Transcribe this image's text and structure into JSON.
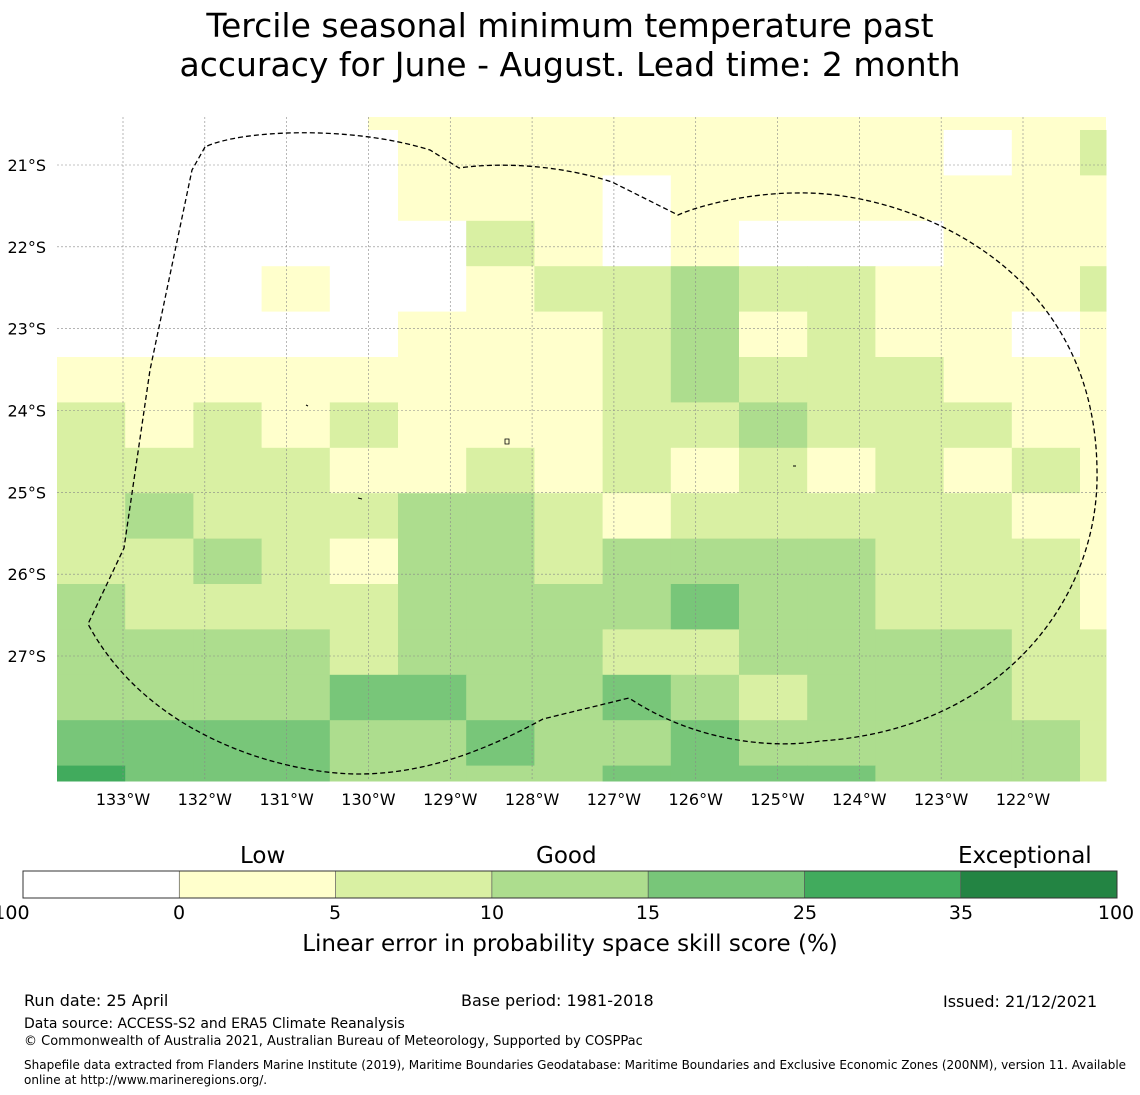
{
  "title": "Tercile seasonal minimum temperature past",
  "title_line2": "accuracy for June - August. Lead time: 2 month",
  "map": {
    "lon_labels": [
      "133°W",
      "132°W",
      "131°W",
      "130°W",
      "129°W",
      "128°W",
      "127°W",
      "126°W",
      "125°W",
      "124°W",
      "123°W",
      "122°W"
    ],
    "lon_values": [
      -133,
      -132,
      -131,
      -130,
      -129,
      -128,
      -127,
      -126,
      -125,
      -124,
      -123,
      -122
    ],
    "lat_labels": [
      "21°S",
      "22°S",
      "23°S",
      "24°S",
      "25°S",
      "26°S",
      "27°S"
    ],
    "lat_values": [
      -21,
      -22,
      -23,
      -24,
      -25,
      -26,
      -27
    ],
    "grid_note_columns": [
      "-133.8",
      "-133.0",
      "-132.2",
      "-131.3",
      "-130.5",
      "-129.7",
      "-128.8",
      "-128.0",
      "-127.2",
      "-126.3",
      "-125.5",
      "-124.7",
      "-123.8",
      "-123.0",
      "-122.2",
      "-121.3"
    ],
    "cell_class_grid": [
      [
        "w",
        "w",
        "w",
        "w",
        "w",
        "y",
        "y",
        "y",
        "y",
        "y",
        "y",
        "y",
        "y",
        "w",
        "y",
        "g"
      ],
      [
        "w",
        "w",
        "w",
        "w",
        "w",
        "y",
        "y",
        "y",
        "w",
        "y",
        "y",
        "y",
        "y",
        "y",
        "y",
        "y"
      ],
      [
        "w",
        "w",
        "w",
        "w",
        "w",
        "w",
        "g",
        "y",
        "w",
        "y",
        "w",
        "w",
        "w",
        "y",
        "y",
        "y"
      ],
      [
        "w",
        "w",
        "w",
        "y",
        "w",
        "w",
        "y",
        "g",
        "g",
        "m",
        "g",
        "g",
        "y",
        "y",
        "y",
        "g"
      ],
      [
        "w",
        "w",
        "w",
        "w",
        "w",
        "y",
        "y",
        "y",
        "g",
        "m",
        "y",
        "g",
        "y",
        "y",
        "w",
        "y"
      ],
      [
        "y",
        "y",
        "y",
        "y",
        "y",
        "y",
        "y",
        "y",
        "g",
        "m",
        "g",
        "g",
        "g",
        "y",
        "y",
        "y"
      ],
      [
        "g",
        "y",
        "g",
        "y",
        "g",
        "y",
        "y",
        "y",
        "g",
        "g",
        "m",
        "g",
        "g",
        "g",
        "y",
        "y"
      ],
      [
        "g",
        "g",
        "g",
        "g",
        "y",
        "y",
        "g",
        "y",
        "g",
        "y",
        "g",
        "y",
        "g",
        "y",
        "g",
        "y"
      ],
      [
        "g",
        "m",
        "g",
        "g",
        "g",
        "m",
        "m",
        "g",
        "y",
        "g",
        "g",
        "g",
        "g",
        "g",
        "y",
        "y"
      ],
      [
        "g",
        "g",
        "m",
        "g",
        "y",
        "m",
        "m",
        "g",
        "m",
        "m",
        "m",
        "m",
        "g",
        "g",
        "g",
        "y"
      ],
      [
        "m",
        "g",
        "g",
        "g",
        "g",
        "m",
        "m",
        "m",
        "m",
        "d",
        "m",
        "m",
        "g",
        "g",
        "g",
        "y"
      ],
      [
        "m",
        "m",
        "m",
        "m",
        "g",
        "m",
        "m",
        "m",
        "g",
        "g",
        "m",
        "m",
        "m",
        "m",
        "g",
        "g"
      ],
      [
        "m",
        "m",
        "m",
        "m",
        "d",
        "d",
        "m",
        "m",
        "d",
        "m",
        "g",
        "m",
        "m",
        "m",
        "g",
        "g"
      ],
      [
        "d",
        "d",
        "d",
        "d",
        "m",
        "m",
        "d",
        "m",
        "m",
        "d",
        "m",
        "m",
        "m",
        "m",
        "m",
        "g"
      ],
      [
        "e",
        "d",
        "d",
        "d",
        "m",
        "m",
        "m",
        "m",
        "d",
        "d",
        "d",
        "d",
        "m",
        "m",
        "m",
        "g"
      ]
    ],
    "class_colors": {
      "w": "#ffffff",
      "y": "#ffffcc",
      "g": "#d9f0a3",
      "m": "#addd8e",
      "d": "#78c679",
      "e": "#41ab5d"
    }
  },
  "colorbar": {
    "category_labels": [
      "Low",
      "Good",
      "Exceptional"
    ],
    "tick_labels": [
      "-100",
      "0",
      "5",
      "10",
      "15",
      "25",
      "35",
      "100"
    ],
    "colors": [
      "#ffffff",
      "#ffffcc",
      "#d9f0a3",
      "#addd8e",
      "#78c679",
      "#41ab5d",
      "#238443"
    ],
    "label": "Linear error in probability space skill score (%)"
  },
  "footer": {
    "run_date": "Run date: 25 April",
    "base_period": "Base period: 1981-2018",
    "issued": "Issued: 21/12/2021",
    "data_source": "Data source: ACCESS-S2 and ERA5 Climate Reanalysis",
    "copyright": "© Commonwealth of Australia 2021, Australian Bureau of Meteorology, Supported by COSPPac",
    "shapefile_line1": "Shapefile data extracted from Flanders Marine Institute (2019), Maritime Boundaries Geodatabase: Maritime Boundaries and Exclusive Economic Zones (200NM), version 11. Available",
    "shapefile_line2": "online at http://www.marineregions.org/."
  }
}
